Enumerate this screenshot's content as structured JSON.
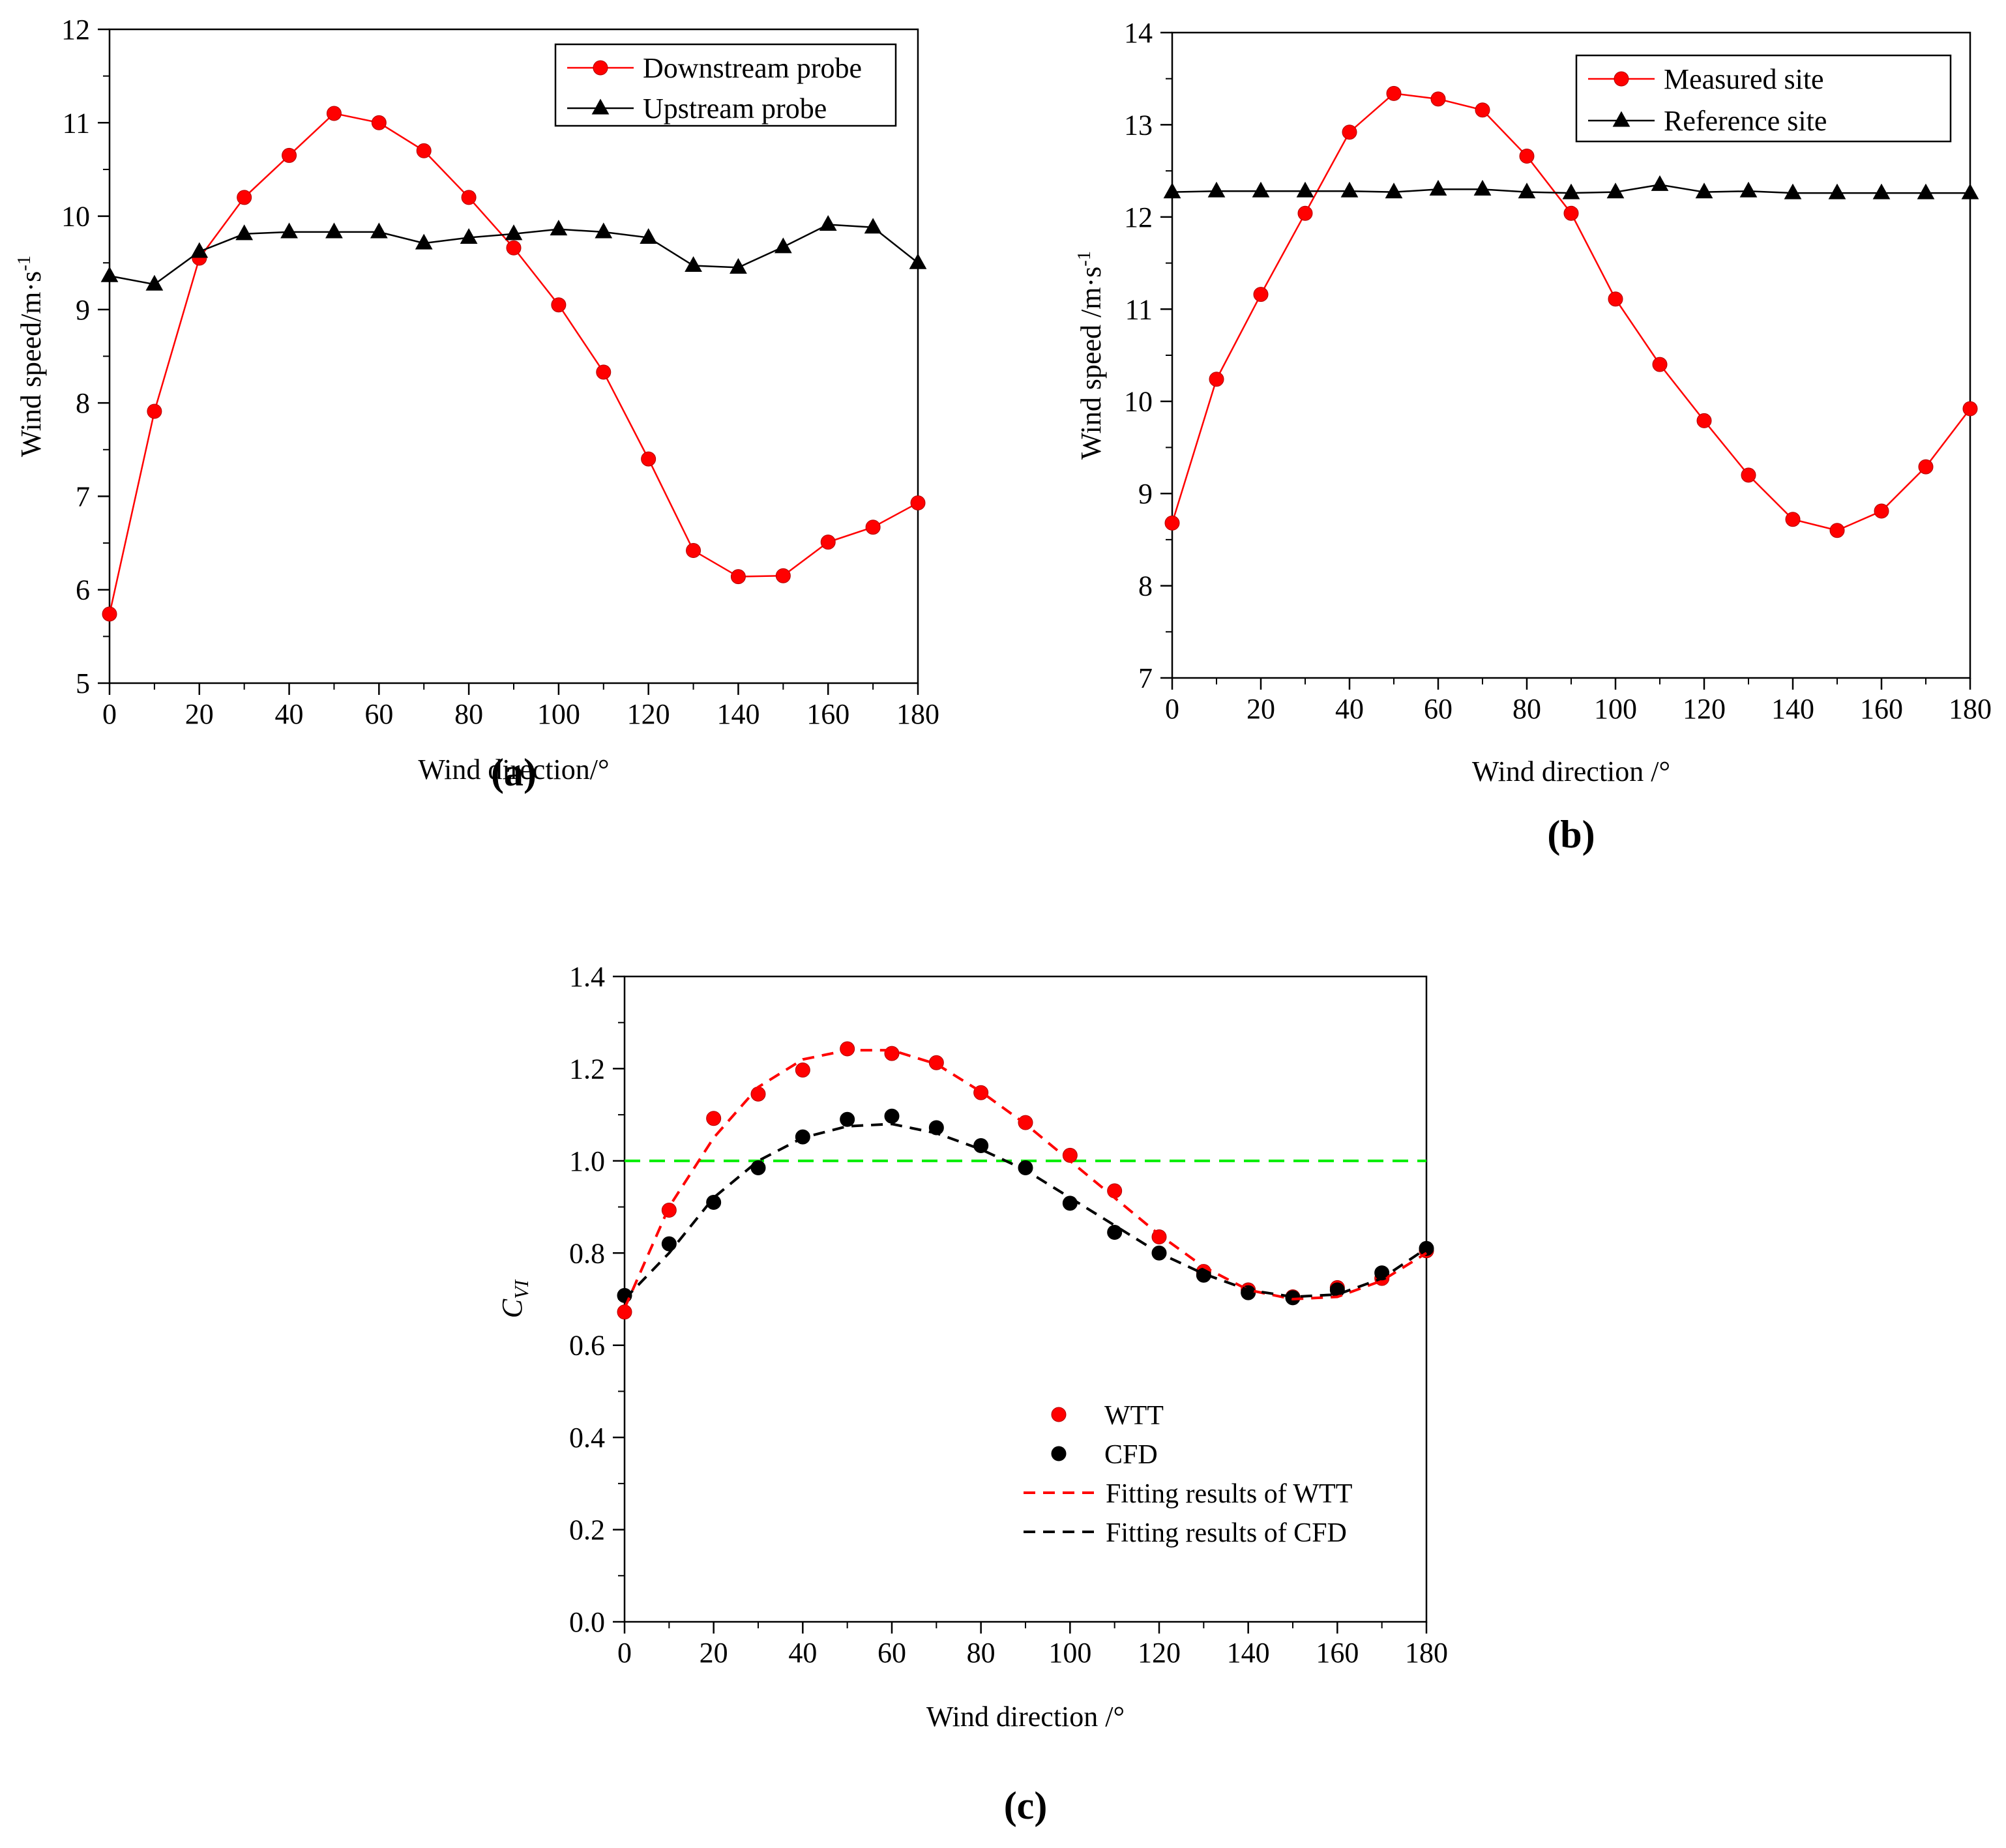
{
  "chart_data": [
    {
      "type": "line",
      "panel_label": "(a)",
      "xlabel": "Wind direction/°",
      "ylabel": "Wind speed/m·s",
      "ylabel_sup": "-1",
      "xlim": [
        0,
        180
      ],
      "ylim": [
        5,
        12
      ],
      "xticks": [
        0,
        20,
        40,
        60,
        80,
        100,
        120,
        140,
        160,
        180
      ],
      "yticks": [
        5,
        6,
        7,
        8,
        9,
        10,
        11,
        12
      ],
      "grid": false,
      "legend_position": "top-right",
      "x": [
        0,
        10,
        20,
        30,
        40,
        50,
        60,
        70,
        80,
        90,
        100,
        110,
        120,
        130,
        140,
        150,
        160,
        170,
        180
      ],
      "series": [
        {
          "name": "Downstream probe",
          "color": "#ff0000",
          "marker": "circle",
          "values": [
            5.74,
            7.91,
            9.55,
            10.2,
            10.65,
            11.1,
            11.0,
            10.7,
            10.2,
            9.66,
            9.05,
            8.33,
            7.4,
            6.42,
            6.14,
            6.15,
            6.51,
            6.67,
            6.93
          ]
        },
        {
          "name": "Upstream probe",
          "color": "#000000",
          "marker": "triangle",
          "values": [
            9.36,
            9.27,
            9.62,
            9.81,
            9.83,
            9.83,
            9.83,
            9.71,
            9.77,
            9.81,
            9.86,
            9.83,
            9.77,
            9.47,
            9.45,
            9.67,
            9.91,
            9.88,
            9.5
          ]
        }
      ]
    },
    {
      "type": "line",
      "panel_label": "(b)",
      "xlabel": "Wind direction /°",
      "ylabel": "Wind speed /m·s",
      "ylabel_sup": "-1",
      "xlim": [
        0,
        180
      ],
      "ylim": [
        7,
        14
      ],
      "xticks": [
        0,
        20,
        40,
        60,
        80,
        100,
        120,
        140,
        160,
        180
      ],
      "yticks": [
        7,
        8,
        9,
        10,
        11,
        12,
        13,
        14
      ],
      "grid": false,
      "legend_position": "top-right",
      "x": [
        0,
        10,
        20,
        30,
        40,
        50,
        60,
        70,
        80,
        90,
        100,
        110,
        120,
        130,
        140,
        150,
        160,
        170,
        180
      ],
      "series": [
        {
          "name": "Measured site",
          "color": "#ff0000",
          "marker": "circle",
          "values": [
            8.68,
            10.24,
            11.16,
            12.04,
            12.92,
            13.34,
            13.28,
            13.16,
            12.66,
            12.04,
            11.11,
            10.4,
            9.79,
            9.2,
            8.72,
            8.6,
            8.81,
            9.29,
            9.92
          ]
        },
        {
          "name": "Reference site",
          "color": "#000000",
          "marker": "triangle",
          "values": [
            12.27,
            12.28,
            12.28,
            12.28,
            12.28,
            12.27,
            12.3,
            12.3,
            12.27,
            12.26,
            12.27,
            12.35,
            12.27,
            12.28,
            12.26,
            12.26,
            12.26,
            12.26,
            12.26
          ]
        }
      ]
    },
    {
      "type": "scatter",
      "panel_label": "(c)",
      "xlabel": "Wind direction /°",
      "ylabel_main": "C",
      "ylabel_sub": "VI",
      "xlim": [
        0,
        180
      ],
      "ylim": [
        0.0,
        1.4
      ],
      "xticks": [
        0,
        20,
        40,
        60,
        80,
        100,
        120,
        140,
        160,
        180
      ],
      "yticks": [
        "0.0",
        "0.2",
        "0.4",
        "0.6",
        "0.8",
        "1.0",
        "1.2",
        "1.4"
      ],
      "grid": false,
      "legend_position": "bottom-right",
      "reference_line": {
        "y": 1.0,
        "color": "#00ee00"
      },
      "x": [
        0,
        10,
        20,
        30,
        40,
        50,
        60,
        70,
        80,
        90,
        100,
        110,
        120,
        130,
        140,
        150,
        160,
        170,
        180
      ],
      "series": [
        {
          "name": "WTT",
          "color": "#ff0000",
          "marker": "circle",
          "values": [
            0.672,
            0.893,
            1.092,
            1.145,
            1.197,
            1.243,
            1.233,
            1.213,
            1.148,
            1.083,
            1.012,
            0.935,
            0.835,
            0.76,
            0.72,
            0.705,
            0.725,
            0.745,
            0.805
          ]
        },
        {
          "name": "CFD",
          "color": "#000000",
          "marker": "circle",
          "values": [
            0.708,
            0.82,
            0.91,
            0.985,
            1.052,
            1.09,
            1.097,
            1.072,
            1.033,
            0.985,
            0.908,
            0.845,
            0.8,
            0.752,
            0.714,
            0.703,
            0.72,
            0.757,
            0.81
          ]
        },
        {
          "name": "Fitting results of WTT",
          "color": "#ff0000",
          "style": "dashed",
          "x": [
            0,
            10,
            20,
            30,
            40,
            50,
            60,
            70,
            80,
            90,
            100,
            110,
            120,
            130,
            140,
            150,
            160,
            170,
            180
          ],
          "values": [
            0.68,
            0.9,
            1.05,
            1.16,
            1.22,
            1.24,
            1.24,
            1.21,
            1.15,
            1.08,
            1.0,
            0.92,
            0.84,
            0.77,
            0.72,
            0.7,
            0.705,
            0.74,
            0.8
          ]
        },
        {
          "name": "Fitting results of CFD",
          "color": "#000000",
          "style": "dashed",
          "x": [
            0,
            10,
            20,
            30,
            40,
            50,
            60,
            70,
            80,
            90,
            100,
            110,
            120,
            130,
            140,
            150,
            160,
            170,
            180
          ],
          "values": [
            0.7,
            0.8,
            0.92,
            1.0,
            1.05,
            1.075,
            1.08,
            1.06,
            1.025,
            0.98,
            0.92,
            0.86,
            0.8,
            0.755,
            0.72,
            0.705,
            0.71,
            0.745,
            0.81
          ]
        }
      ]
    }
  ]
}
